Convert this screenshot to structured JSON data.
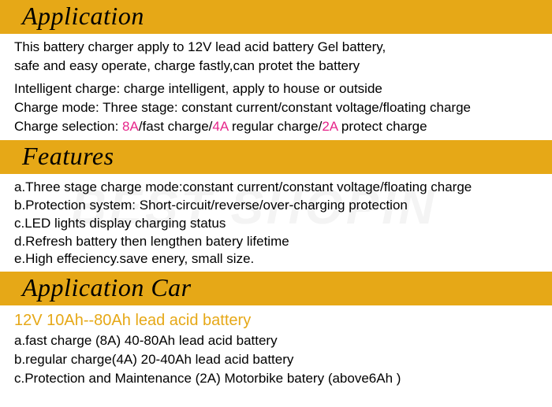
{
  "watermark": "BEST SHOPIN",
  "sections": {
    "application": {
      "header": "Application",
      "intro1": "This battery charger apply to 12V lead acid battery  Gel battery,",
      "intro2": "safe and easy operate, charge fastly,can protet the battery",
      "intelligent": "Intelligent charge: charge intelligent, apply to house  or  outside",
      "chargemode": "Charge mode: Three stage: constant current/constant voltage/floating charge",
      "sel_prefix": "Charge selection: ",
      "sel_8a": "8A",
      "sel_fast": "/fast charge/",
      "sel_4a": "4A",
      "sel_reg": " regular charge/",
      "sel_2a": "2A",
      "sel_prot": " protect charge"
    },
    "features": {
      "header": "Features",
      "a": "a.Three stage charge mode:constant current/constant voltage/floating charge",
      "b": "b.Protection system: Short-circuit/reverse/over-charging protection",
      "c": "c.LED lights display charging status",
      "d": "d.Refresh battery then lengthen batery lifetime",
      "e": "e.High effeciency.save enery, small size."
    },
    "appcar": {
      "header": "Application Car",
      "title": "12V 10Ah--80Ah lead acid battery",
      "a": "a.fast charge (8A) 40-80Ah lead acid battery",
      "b": "b.regular charge(4A) 20-40Ah lead acid battery",
      "c": "c.Protection and Maintenance (2A) Motorbike batery (above6Ah )"
    }
  },
  "colors": {
    "header_bg": "#e6a817",
    "highlight": "#e6258a",
    "orange": "#e6a817",
    "text": "#000000",
    "background": "#ffffff"
  }
}
